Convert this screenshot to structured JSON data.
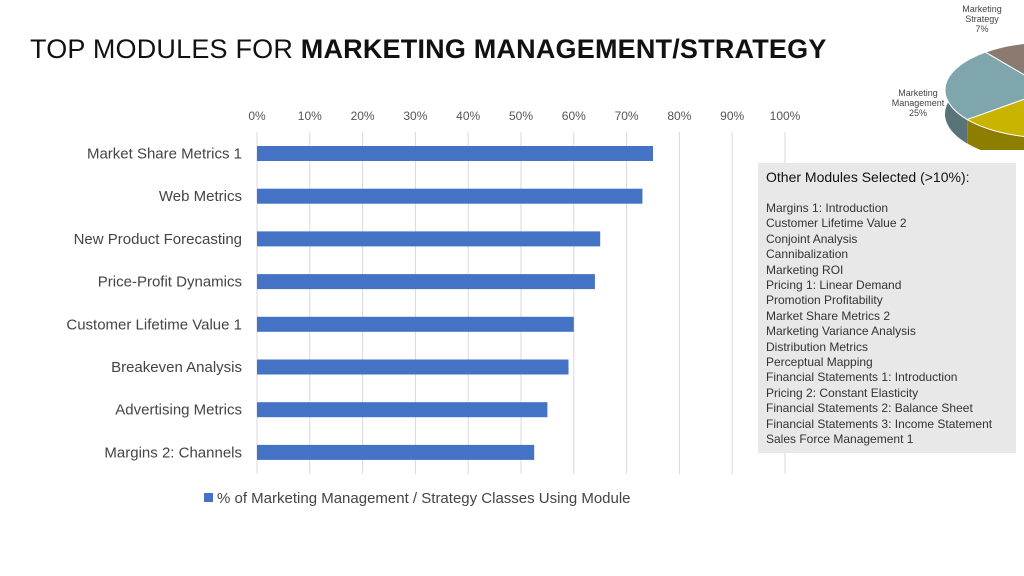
{
  "slide": {
    "title_regular": "TOP MODULES FOR",
    "title_bold": "MARKETING MANAGEMENT/STRATEGY"
  },
  "chart_data": [
    {
      "type": "bar",
      "orientation": "horizontal",
      "categories": [
        "Market Share Metrics 1",
        "Web Metrics",
        "New Product Forecasting",
        "Price-Profit Dynamics",
        "Customer Lifetime Value 1",
        "Breakeven Analysis",
        "Advertising Metrics",
        "Margins 2: Channels"
      ],
      "series": [
        {
          "name": "% of Marketing Management / Strategy Classes Using Module",
          "values": [
            75,
            73,
            65,
            64,
            60,
            59,
            55,
            52.5
          ],
          "color": "#4472c4"
        }
      ],
      "xlim": [
        0,
        100
      ],
      "xticks": [
        "0%",
        "10%",
        "20%",
        "30%",
        "40%",
        "50%",
        "60%",
        "70%",
        "80%",
        "90%",
        "100%"
      ],
      "axis_position": "top",
      "grid": true,
      "legend": "bottom"
    },
    {
      "type": "pie",
      "style": "3d",
      "slices": [
        {
          "label": "Marketing Strategy",
          "value": 7,
          "value_label": "7%",
          "color": "#8a7a70"
        },
        {
          "label": "Marketing Management",
          "value": 25,
          "value_label": "25%",
          "color": "#7fa6ad"
        },
        {
          "label": "",
          "value": 18,
          "value_label": "",
          "color": "#c9b400"
        }
      ],
      "partial": true
    }
  ],
  "other_modules": {
    "title": "Other Modules Selected (>10%):",
    "items": [
      "Margins 1: Introduction",
      "Customer Lifetime Value 2",
      "Conjoint Analysis",
      "Cannibalization",
      "Marketing ROI",
      "Pricing 1: Linear Demand",
      "Promotion Profitability",
      "Market Share Metrics 2",
      "Marketing Variance Analysis",
      "Distribution Metrics",
      "Perceptual Mapping",
      "Financial Statements 1: Introduction",
      "Pricing 2: Constant Elasticity",
      "Financial Statements 2: Balance Sheet",
      "Financial Statements 3: Income Statement",
      "Sales Force Management 1"
    ]
  }
}
